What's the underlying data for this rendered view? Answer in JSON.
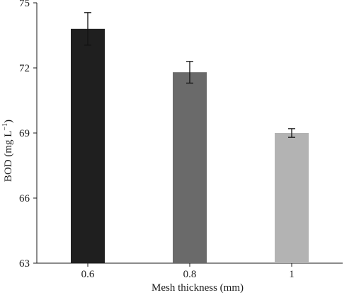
{
  "chart_data": {
    "type": "bar",
    "title": "",
    "xlabel": "Mesh thickness (mm)",
    "ylabel_main": "BOD (mg L",
    "ylabel_sup": "−1",
    "ylabel_close": ")",
    "ylim": [
      63,
      75
    ],
    "yticks": [
      "63",
      "66",
      "69",
      "72",
      "75"
    ],
    "ytick_values": [
      63,
      66,
      69,
      72,
      75
    ],
    "categories": [
      "0.6",
      "0.8",
      "1"
    ],
    "values": [
      73.8,
      71.8,
      69.0
    ],
    "errors": [
      0.75,
      0.5,
      0.2
    ],
    "colors": [
      "#1f1f1f",
      "#6a6a6a",
      "#b3b3b3"
    ],
    "grid": false,
    "legend": "none"
  }
}
